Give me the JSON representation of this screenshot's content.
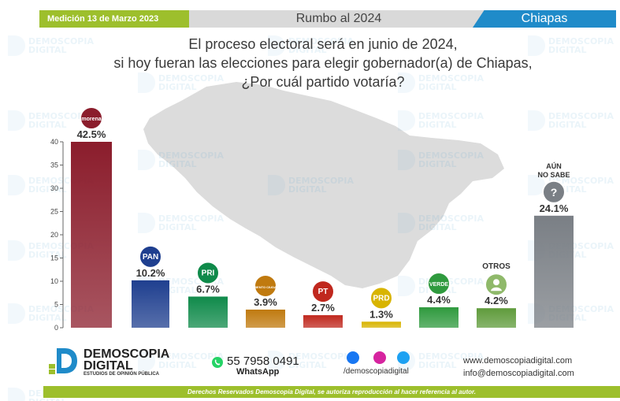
{
  "header": {
    "date_label": "Medición 13 de Marzo 2023",
    "title": "Rumbo al 2024",
    "region": "Chiapas"
  },
  "question": {
    "line1": "El proceso electoral será en junio de 2024,",
    "line2": "si hoy fueran las elecciones para elegir gobernador(a) de Chiapas,",
    "line3": "¿Por cuál partido votaría?"
  },
  "colors": {
    "brand_green": "#9dbf2c",
    "brand_blue": "#1f8bc9",
    "bar_morena": "#8b1d2c",
    "bar_pan": "#1f3f8f",
    "bar_pri": "#0f8a4a",
    "bar_mc": "#c07a0f",
    "bar_pt": "#c0281e",
    "bar_prd": "#d8b400",
    "bar_verde": "#2f9a3e",
    "bar_otros": "#5f9b3b",
    "bar_nosabe": "#7a7f85"
  },
  "chart_data": {
    "type": "bar",
    "ylim": [
      0,
      40
    ],
    "yticks": [
      0,
      5,
      10,
      15,
      20,
      25,
      30,
      35,
      40
    ],
    "categories": [
      "MORENA",
      "PAN",
      "PRI",
      "MC",
      "PT",
      "PRD",
      "VERDE",
      "OTROS",
      "AÚN NO SABE"
    ],
    "values": [
      42.5,
      10.2,
      6.7,
      3.9,
      2.7,
      1.3,
      4.4,
      4.2,
      24.1
    ],
    "value_labels": [
      "42.5%",
      "10.2%",
      "6.7%",
      "3.9%",
      "2.7%",
      "1.3%",
      "4.4%",
      "4.2%",
      "24.1%"
    ],
    "logo_text": [
      "morena",
      "PAN",
      "PRI",
      "MOVIMIENTO CIUDADANO",
      "PT",
      "PRD",
      "VERDE",
      "",
      "?"
    ],
    "category_captions": [
      "",
      "",
      "",
      "",
      "",
      "",
      "",
      "OTROS",
      "AÚN NO SABE"
    ],
    "legend": "none",
    "grid": false
  },
  "footer": {
    "brand_name_1": "DEMOSCOPIA",
    "brand_name_2": "DIGITAL",
    "brand_sub": "ESTUDIOS DE OPINIÓN PÚBLICA",
    "whatsapp_number": "55 7958 0491",
    "whatsapp_label": "WhatsApp",
    "social_handle": "/demoscopiadigital",
    "website": "www.demoscopiadigital.com",
    "email": "info@demoscopiadigital.com",
    "rights": "Derechos Reservados Demoscopia Digital, se autoriza reproducción al hacer referencia al autor."
  },
  "watermark": {
    "line1": "DEMOSCOPIA",
    "line2": "DIGITAL"
  }
}
